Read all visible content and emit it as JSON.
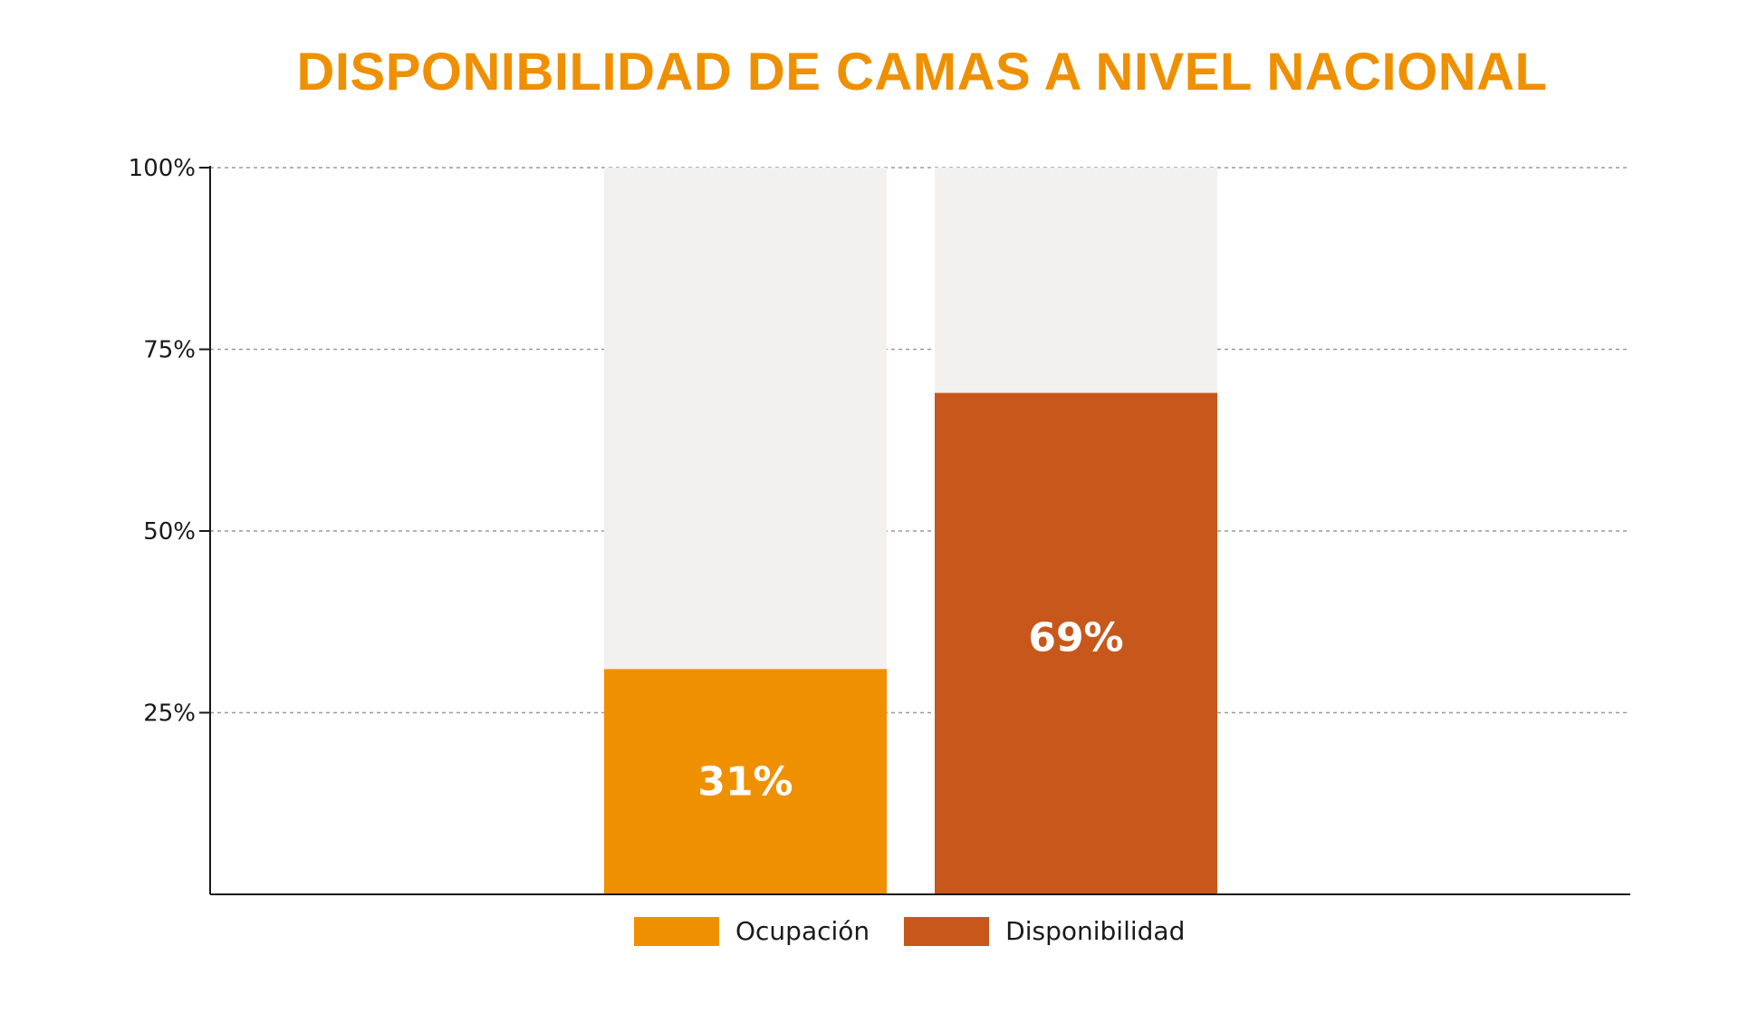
{
  "chart_data": {
    "type": "bar",
    "title": "DISPONIBILIDAD DE CAMAS A NIVEL NACIONAL",
    "categories": [
      "Ocupación",
      "Disponibilidad"
    ],
    "values": [
      31,
      69
    ],
    "value_labels": [
      "31%",
      "69%"
    ],
    "colors": [
      "#ee9000",
      "#c8571b"
    ],
    "background_bar_color": "#f2f1ef",
    "ylim": [
      0,
      100
    ],
    "yticks": [
      {
        "value": 25,
        "label": "25%"
      },
      {
        "value": 50,
        "label": "50%"
      },
      {
        "value": 75,
        "label": "75%"
      },
      {
        "value": 100,
        "label": "100%"
      }
    ],
    "grid": true,
    "legend_position": "bottom",
    "xlabel": "",
    "ylabel": ""
  }
}
